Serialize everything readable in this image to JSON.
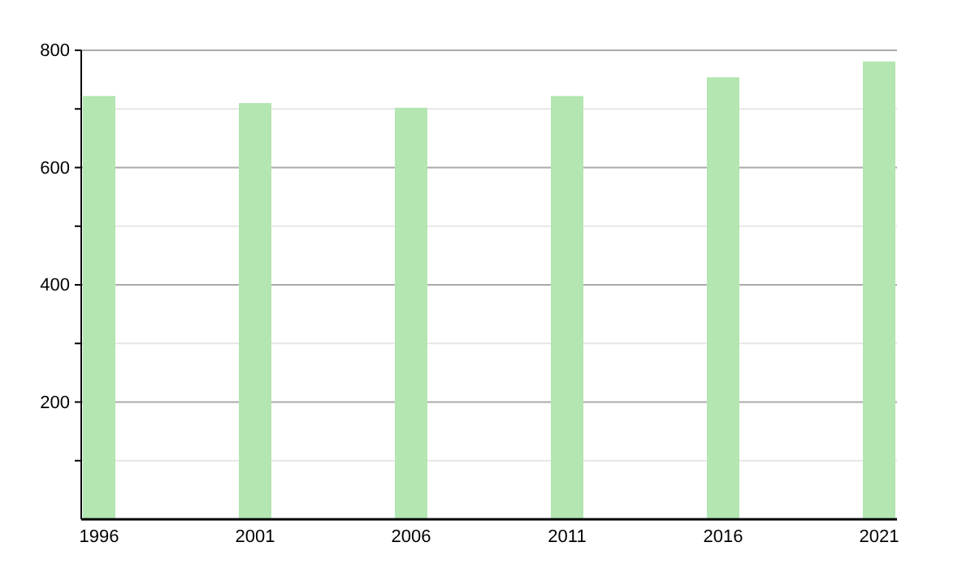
{
  "chart_data": {
    "type": "bar",
    "categories": [
      "1996",
      "2001",
      "2006",
      "2011",
      "2016",
      "2021"
    ],
    "values": [
      722,
      710,
      702,
      722,
      754,
      781
    ],
    "color": "#b3e6b1",
    "ylim": [
      0,
      800
    ],
    "yticks": [
      {
        "value": 100,
        "label": null
      },
      200,
      {
        "value": 300,
        "label": null
      },
      400,
      {
        "value": 500,
        "label": null
      },
      600,
      {
        "value": 700,
        "label": null
      },
      800
    ],
    "grid": "y"
  }
}
